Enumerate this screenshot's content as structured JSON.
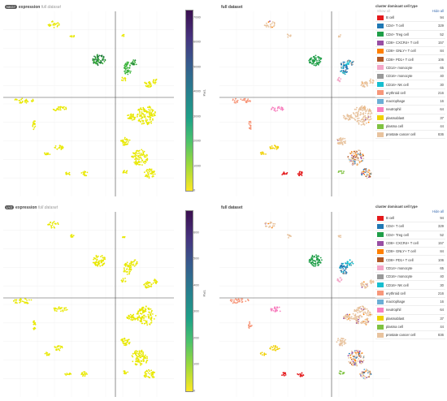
{
  "panels": [
    {
      "gene": "NKG7",
      "expression_label": "expression",
      "dataset_label": "full dataset",
      "right_title": "full dataset",
      "colorbar": {
        "label": "TPM",
        "ticks": [
          "7000",
          "6000",
          "5000",
          "4000",
          "3000",
          "2000",
          "1000",
          "0"
        ],
        "max": 7000
      },
      "legend": {
        "title": "cluster dominant cell type",
        "show_all": "Show all",
        "hide_all": "Hide all"
      }
    },
    {
      "gene": "LYZ",
      "expression_label": "expression",
      "dataset_label": "full dataset",
      "right_title": "full dataset",
      "colorbar": {
        "label": "TPM",
        "ticks": [
          "600",
          "500",
          "400",
          "300",
          "200",
          "100",
          "0"
        ],
        "max": 600
      },
      "legend": {
        "title": "cluster dominant cell type",
        "show_all": "",
        "hide_all": "Hide all"
      }
    }
  ],
  "cell_types": [
    {
      "name": "B cell",
      "count": "94",
      "color": "#e41a1c"
    },
    {
      "name": "CD4+ T cell",
      "count": "329",
      "color": "#1f78b4"
    },
    {
      "name": "CD4+ Treg cell",
      "count": "52",
      "color": "#1f9e48"
    },
    {
      "name": "CD8+ CXCR4+ T cell",
      "count": "157",
      "color": "#984ea3"
    },
    {
      "name": "CD8+ GNLY+ T cell",
      "count": "84",
      "color": "#ff7f00"
    },
    {
      "name": "CD8+ PD1+ T cell",
      "count": "106",
      "color": "#b15928"
    },
    {
      "name": "CD14+ monocyte",
      "count": "65",
      "color": "#f4a6c8"
    },
    {
      "name": "CD16+ monocyte",
      "count": "40",
      "color": "#999999"
    },
    {
      "name": "CD16+ NK cell",
      "count": "30",
      "color": "#17becf"
    },
    {
      "name": "erythroid cell",
      "count": "216",
      "color": "#f7977a"
    },
    {
      "name": "macrophage",
      "count": "16",
      "color": "#6baed6"
    },
    {
      "name": "neutrophil",
      "count": "64",
      "color": "#f781bf"
    },
    {
      "name": "plasmablast",
      "count": "37",
      "color": "#f0d000"
    },
    {
      "name": "plasma cell",
      "count": "44",
      "color": "#7fc241"
    },
    {
      "name": "prostate cancer cell",
      "count": "836",
      "color": "#e8c39e"
    }
  ],
  "expression_colors": {
    "low": "#e8e800",
    "mid": "#3cb43c",
    "high": "#1f7a3a"
  }
}
